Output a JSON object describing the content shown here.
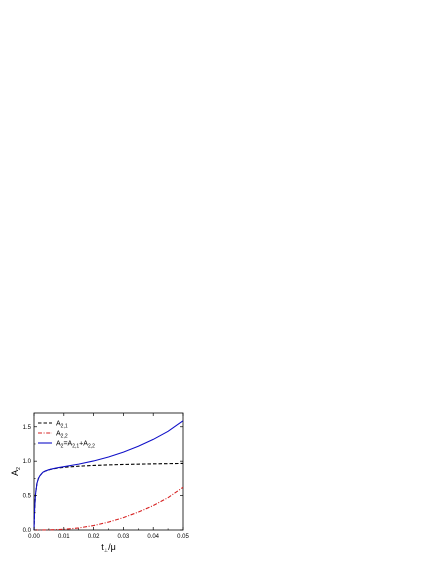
{
  "chart_data": {
    "type": "line",
    "title": "",
    "xlabel": {
      "main": "t",
      "sub": "⊥",
      "suffix": "/μ"
    },
    "ylabel": {
      "main": "A",
      "sub": "2"
    },
    "xlim": [
      0.0,
      0.05
    ],
    "ylim": [
      0.0,
      1.7
    ],
    "xticks": [
      0.0,
      0.01,
      0.02,
      0.03,
      0.04,
      0.05
    ],
    "xtick_labels": [
      "0.00",
      "0.01",
      "0.02",
      "0.03",
      "0.04",
      "0.05"
    ],
    "yticks": [
      0.0,
      0.5,
      1.0,
      1.5
    ],
    "ytick_labels": [
      "0.0",
      "0.5",
      "1.0",
      "1.5"
    ],
    "grid": false,
    "legend_position": "top-left",
    "series": [
      {
        "legend": [
          {
            "t": "A"
          },
          {
            "t": "2,1",
            "sub": true
          }
        ],
        "style": "dashed",
        "color": "#000000",
        "x": [
          0,
          0.0002,
          0.0005,
          0.001,
          0.0015,
          0.002,
          0.003,
          0.004,
          0.005,
          0.006,
          0.007,
          0.008,
          0.01,
          0.012,
          0.015,
          0.02,
          0.025,
          0.03,
          0.035,
          0.04,
          0.045,
          0.05
        ],
        "y": [
          0,
          0.3,
          0.52,
          0.68,
          0.75,
          0.79,
          0.84,
          0.86,
          0.875,
          0.885,
          0.893,
          0.9,
          0.91,
          0.918,
          0.927,
          0.938,
          0.946,
          0.952,
          0.957,
          0.961,
          0.964,
          0.967
        ]
      },
      {
        "legend": [
          {
            "t": "A"
          },
          {
            "t": "2,2",
            "sub": true
          }
        ],
        "style": "dash-dot",
        "color": "#d62020",
        "x": [
          0,
          0.005,
          0.01,
          0.015,
          0.02,
          0.025,
          0.03,
          0.035,
          0.04,
          0.045,
          0.05
        ],
        "y": [
          0,
          0.002,
          0.01,
          0.03,
          0.065,
          0.115,
          0.18,
          0.26,
          0.355,
          0.47,
          0.62
        ]
      },
      {
        "legend": [
          {
            "t": "A"
          },
          {
            "t": "2",
            "sub": true
          },
          {
            "t": "=A"
          },
          {
            "t": "2,1",
            "sub": true
          },
          {
            "t": "+A"
          },
          {
            "t": "2,2",
            "sub": true
          }
        ],
        "style": "solid",
        "color": "#1010c8",
        "x": [
          0,
          0.0002,
          0.0005,
          0.001,
          0.0015,
          0.002,
          0.003,
          0.004,
          0.005,
          0.006,
          0.007,
          0.008,
          0.01,
          0.015,
          0.02,
          0.025,
          0.03,
          0.035,
          0.04,
          0.045,
          0.05
        ],
        "y": [
          0,
          0.3,
          0.52,
          0.68,
          0.75,
          0.79,
          0.84,
          0.86,
          0.876,
          0.887,
          0.896,
          0.905,
          0.92,
          0.957,
          1.003,
          1.061,
          1.132,
          1.217,
          1.316,
          1.434,
          1.587
        ]
      }
    ]
  }
}
